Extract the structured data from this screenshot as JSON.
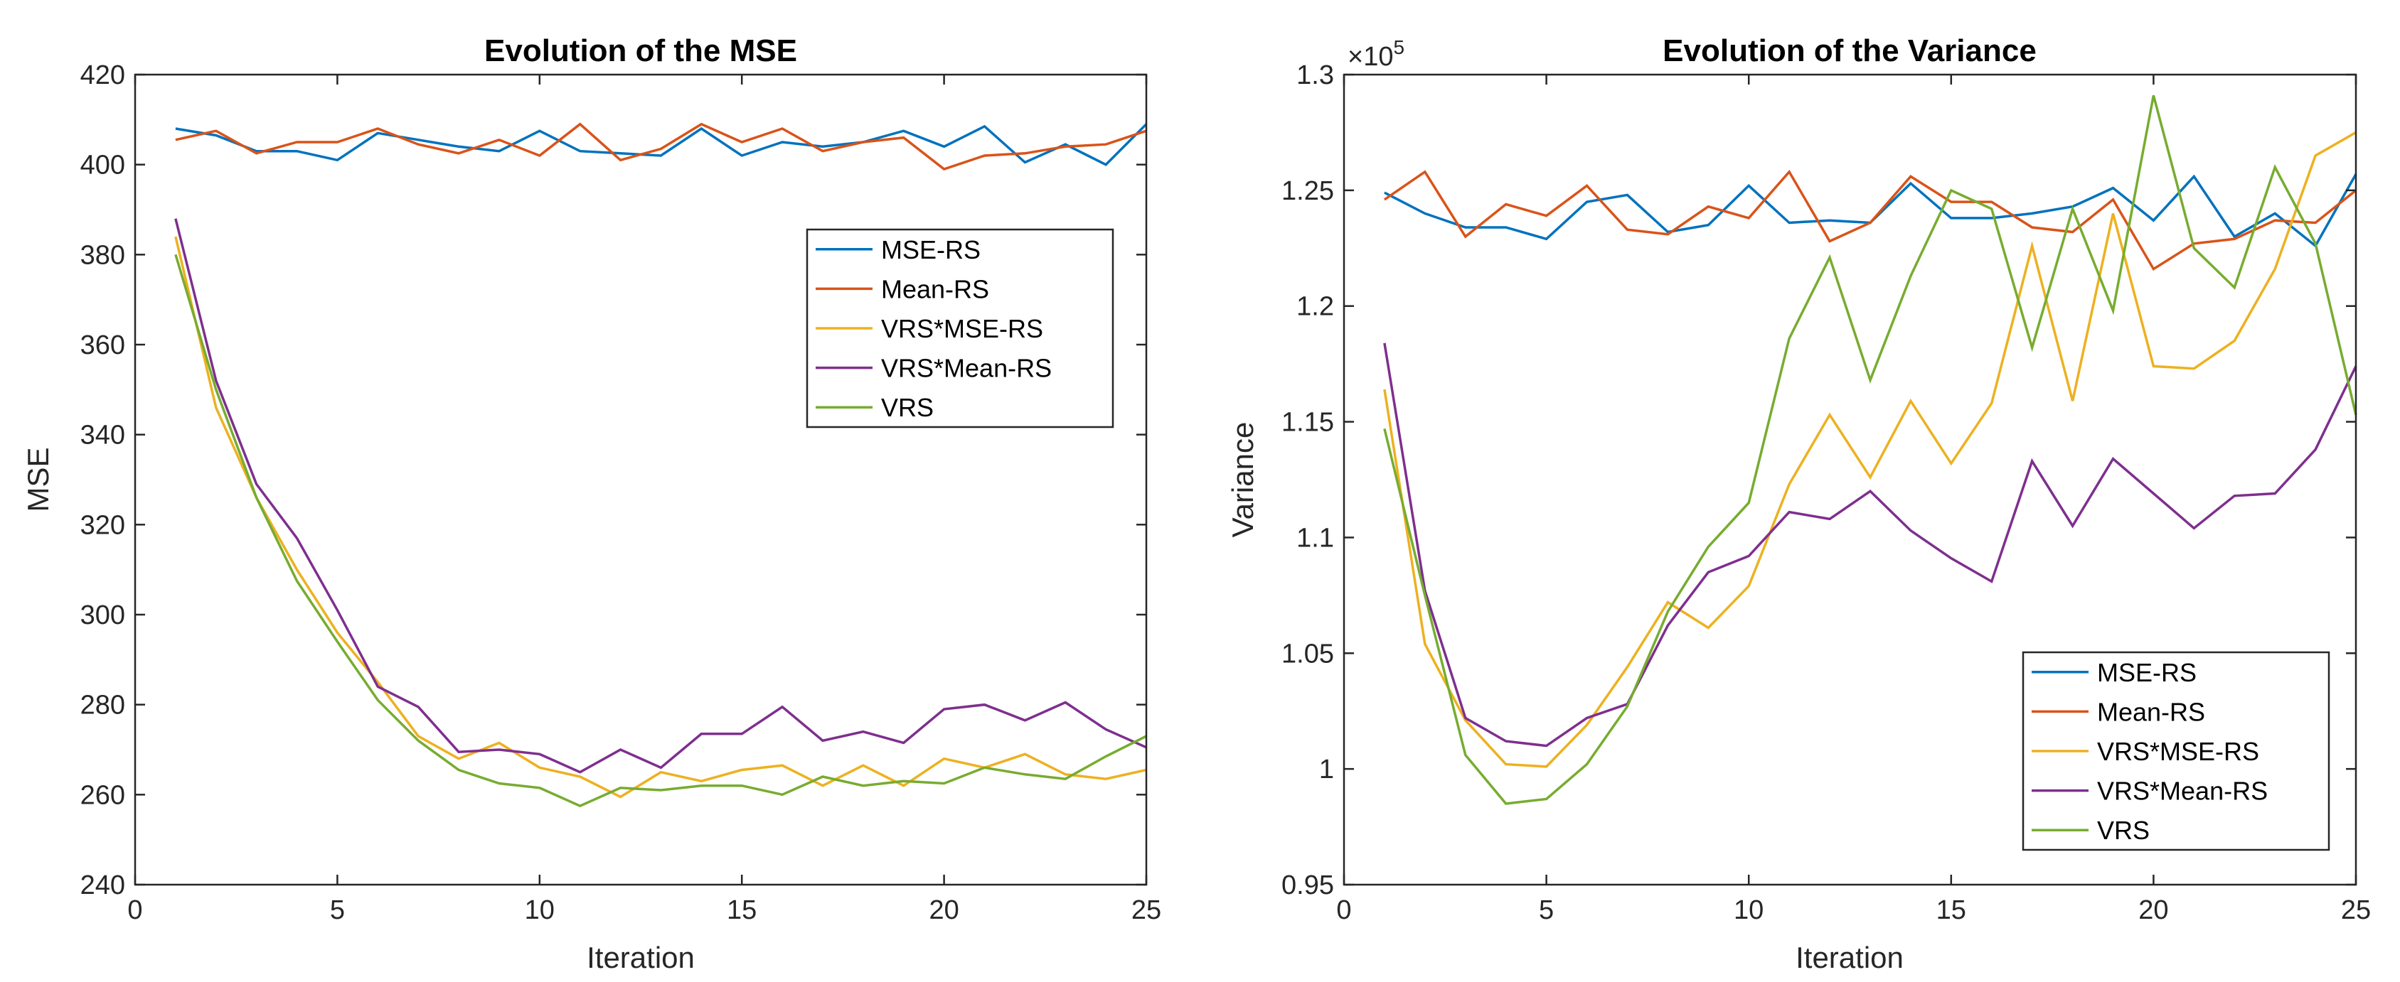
{
  "chart_data": [
    {
      "type": "line",
      "title": "Evolution of the MSE",
      "xlabel": "Iteration",
      "ylabel": "MSE",
      "xlim": [
        0,
        25
      ],
      "ylim": [
        240,
        420
      ],
      "xticks": [
        0,
        5,
        10,
        15,
        20,
        25
      ],
      "xtick_labels": [
        "0",
        "5",
        "10",
        "15",
        "20",
        "25"
      ],
      "yticks": [
        240,
        260,
        280,
        300,
        320,
        340,
        360,
        380,
        400,
        420
      ],
      "ytick_labels": [
        "240",
        "260",
        "280",
        "300",
        "320",
        "340",
        "360",
        "380",
        "400",
        "420"
      ],
      "legend_position": "right-middle",
      "x": [
        1,
        2,
        3,
        4,
        5,
        6,
        7,
        8,
        9,
        10,
        11,
        12,
        13,
        14,
        15,
        16,
        17,
        18,
        19,
        20,
        21,
        22,
        23,
        24,
        25
      ],
      "series": [
        {
          "name": "MSE-RS",
          "color": "#0072BD",
          "values": [
            408,
            406.5,
            403,
            403,
            401,
            407,
            405.5,
            404,
            403,
            407.5,
            403,
            402.5,
            402,
            408,
            402,
            405,
            404,
            405,
            407.5,
            404,
            408.5,
            400.5,
            404.5,
            400,
            409
          ]
        },
        {
          "name": "Mean-RS",
          "color": "#D95319",
          "values": [
            405.5,
            407.5,
            402.5,
            405,
            405,
            408,
            404.5,
            402.5,
            405.5,
            402,
            409,
            401,
            403.5,
            409,
            405,
            408,
            403,
            405,
            406,
            399,
            402,
            402.5,
            404,
            404.5,
            407.5
          ]
        },
        {
          "name": "VRS*MSE-RS",
          "color": "#EDB120",
          "values": [
            384,
            346,
            326,
            310,
            296,
            285,
            273,
            268,
            271.5,
            266,
            264,
            259.5,
            265,
            263,
            265.5,
            266.5,
            262,
            266.5,
            262,
            268,
            266,
            269,
            264.5,
            263.5,
            265.5
          ]
        },
        {
          "name": "VRS*Mean-RS",
          "color": "#7E2F8E",
          "values": [
            388,
            352,
            329,
            317,
            301,
            284,
            279.5,
            269.5,
            270,
            269,
            265,
            270,
            266,
            273.5,
            273.5,
            279.5,
            272,
            274,
            271.5,
            279,
            280,
            276.5,
            280.5,
            274.5,
            270.5
          ]
        },
        {
          "name": "VRS",
          "color": "#77AC30",
          "values": [
            380,
            350,
            326,
            307.5,
            294,
            281,
            272,
            265.5,
            262.5,
            261.5,
            257.5,
            261.5,
            261,
            262,
            262,
            260,
            264,
            262,
            263,
            262.5,
            266,
            264.5,
            263.5,
            268.5,
            273
          ]
        }
      ]
    },
    {
      "type": "line",
      "title": "Evolution of the Variance",
      "xlabel": "Iteration",
      "ylabel": "Variance",
      "exponent_label": "×10",
      "exponent_power": "5",
      "xlim": [
        0,
        25
      ],
      "ylim": [
        0.95,
        1.3
      ],
      "xticks": [
        0,
        5,
        10,
        15,
        20,
        25
      ],
      "xtick_labels": [
        "0",
        "5",
        "10",
        "15",
        "20",
        "25"
      ],
      "yticks": [
        0.95,
        1.0,
        1.05,
        1.1,
        1.15,
        1.2,
        1.25,
        1.3
      ],
      "ytick_labels": [
        "0.95",
        "1",
        "1.05",
        "1.1",
        "1.15",
        "1.2",
        "1.25",
        "1.3"
      ],
      "legend_position": "bottom-right",
      "x": [
        1,
        2,
        3,
        4,
        5,
        6,
        7,
        8,
        9,
        10,
        11,
        12,
        13,
        14,
        15,
        16,
        17,
        18,
        19,
        20,
        21,
        22,
        23,
        24,
        25
      ],
      "series": [
        {
          "name": "MSE-RS",
          "color": "#0072BD",
          "values": [
            1.249,
            1.24,
            1.234,
            1.234,
            1.229,
            1.245,
            1.248,
            1.232,
            1.235,
            1.252,
            1.236,
            1.237,
            1.236,
            1.253,
            1.238,
            1.238,
            1.24,
            1.243,
            1.251,
            1.237,
            1.256,
            1.23,
            1.24,
            1.226,
            1.257
          ]
        },
        {
          "name": "Mean-RS",
          "color": "#D95319",
          "values": [
            1.246,
            1.258,
            1.23,
            1.244,
            1.239,
            1.252,
            1.233,
            1.231,
            1.243,
            1.238,
            1.258,
            1.228,
            1.236,
            1.256,
            1.245,
            1.245,
            1.234,
            1.232,
            1.246,
            1.216,
            1.227,
            1.229,
            1.237,
            1.236,
            1.25
          ]
        },
        {
          "name": "VRS*MSE-RS",
          "color": "#EDB120",
          "values": [
            1.164,
            1.054,
            1.021,
            1.002,
            1.001,
            1.019,
            1.044,
            1.072,
            1.061,
            1.079,
            1.123,
            1.153,
            1.126,
            1.159,
            1.132,
            1.158,
            1.226,
            1.159,
            1.24,
            1.174,
            1.173,
            1.185,
            1.216,
            1.265,
            1.275
          ]
        },
        {
          "name": "VRS*Mean-RS",
          "color": "#7E2F8E",
          "values": [
            1.184,
            1.077,
            1.022,
            1.012,
            1.01,
            1.022,
            1.028,
            1.062,
            1.085,
            1.092,
            1.111,
            1.108,
            1.12,
            1.103,
            1.091,
            1.081,
            1.133,
            1.105,
            1.134,
            1.119,
            1.104,
            1.118,
            1.119,
            1.138,
            1.174
          ]
        },
        {
          "name": "VRS",
          "color": "#77AC30",
          "values": [
            1.147,
            1.075,
            1.006,
            0.985,
            0.987,
            1.002,
            1.027,
            1.068,
            1.096,
            1.115,
            1.186,
            1.221,
            1.168,
            1.213,
            1.25,
            1.242,
            1.182,
            1.242,
            1.198,
            1.291,
            1.225,
            1.208,
            1.26,
            1.227,
            1.153
          ]
        }
      ]
    }
  ]
}
